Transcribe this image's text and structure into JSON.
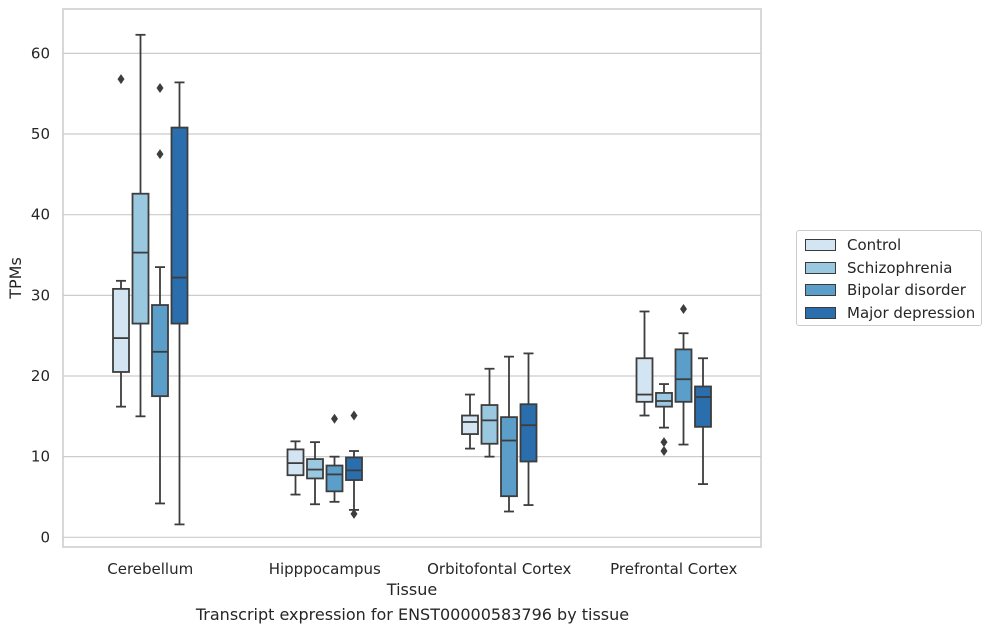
{
  "caption": "Transcript expression for ENST00000583796 by tissue",
  "chart_data": {
    "type": "boxplot",
    "xlabel": "Tissue",
    "ylabel": "TPMs",
    "ylim": [
      -1.2,
      65.5
    ],
    "yticks": [
      0,
      10,
      20,
      30,
      40,
      50,
      60
    ],
    "grid": "horizontal",
    "legend_position": "right",
    "categories": [
      "Cerebellum",
      "Hipppocampus",
      "Orbitofontal Cortex",
      "Prefrontal Cortex"
    ],
    "series": [
      {
        "name": "Control",
        "color": "#d3e4f3",
        "boxes": [
          {
            "whislo": 16.2,
            "q1": 20.5,
            "med": 24.7,
            "q3": 30.8,
            "whishi": 31.8,
            "fliers": [
              56.8
            ]
          },
          {
            "whislo": 5.3,
            "q1": 7.7,
            "med": 9.2,
            "q3": 10.9,
            "whishi": 11.9,
            "fliers": []
          },
          {
            "whislo": 11.0,
            "q1": 12.8,
            "med": 14.3,
            "q3": 15.1,
            "whishi": 17.7,
            "fliers": []
          },
          {
            "whislo": 15.1,
            "q1": 16.8,
            "med": 17.7,
            "q3": 22.2,
            "whishi": 28.0,
            "fliers": []
          }
        ]
      },
      {
        "name": "Schizophrenia",
        "color": "#9ac8e0",
        "boxes": [
          {
            "whislo": 15.0,
            "q1": 26.5,
            "med": 35.3,
            "q3": 42.6,
            "whishi": 62.3,
            "fliers": []
          },
          {
            "whislo": 4.1,
            "q1": 7.3,
            "med": 8.4,
            "q3": 9.7,
            "whishi": 11.8,
            "fliers": []
          },
          {
            "whislo": 10.0,
            "q1": 11.6,
            "med": 14.5,
            "q3": 16.4,
            "whishi": 20.9,
            "fliers": []
          },
          {
            "whislo": 13.6,
            "q1": 16.2,
            "med": 16.9,
            "q3": 17.9,
            "whishi": 19.0,
            "fliers": [
              11.8,
              10.7
            ]
          }
        ]
      },
      {
        "name": "Bipolar disorder",
        "color": "#5a9ec9",
        "boxes": [
          {
            "whislo": 4.2,
            "q1": 17.5,
            "med": 23.0,
            "q3": 28.8,
            "whishi": 33.5,
            "fliers": [
              55.7,
              47.5
            ]
          },
          {
            "whislo": 4.4,
            "q1": 5.7,
            "med": 7.8,
            "q3": 8.9,
            "whishi": 10.0,
            "fliers": [
              14.7
            ]
          },
          {
            "whislo": 3.2,
            "q1": 5.1,
            "med": 12.0,
            "q3": 14.9,
            "whishi": 22.4,
            "fliers": []
          },
          {
            "whislo": 11.5,
            "q1": 16.8,
            "med": 19.6,
            "q3": 23.3,
            "whishi": 25.3,
            "fliers": [
              28.3
            ]
          }
        ]
      },
      {
        "name": "Major depression",
        "color": "#2a6ead",
        "boxes": [
          {
            "whislo": 1.6,
            "q1": 26.5,
            "med": 32.2,
            "q3": 50.8,
            "whishi": 56.4,
            "fliers": []
          },
          {
            "whislo": 3.4,
            "q1": 7.1,
            "med": 8.3,
            "q3": 9.9,
            "whishi": 10.7,
            "fliers": [
              15.1,
              2.9
            ]
          },
          {
            "whislo": 4.0,
            "q1": 9.4,
            "med": 13.9,
            "q3": 16.5,
            "whishi": 22.8,
            "fliers": []
          },
          {
            "whislo": 6.6,
            "q1": 13.7,
            "med": 17.4,
            "q3": 18.7,
            "whishi": 22.2,
            "fliers": []
          }
        ]
      }
    ]
  }
}
